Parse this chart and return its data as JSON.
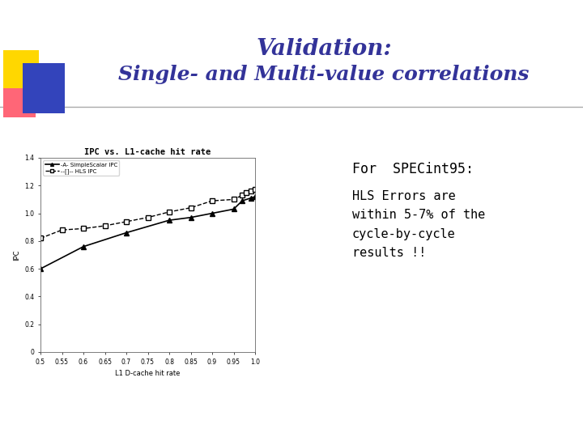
{
  "title_line1": "Validation:",
  "title_line2": "Single- and Multi-value correlations",
  "title_color": "#333399",
  "bg_color": "#ffffff",
  "chart_title": "IPC vs. L1-cache hit rate",
  "xlabel": "L1 D-cache hit rate",
  "ylabel": "IPC",
  "xlim": [
    0.5,
    1.0
  ],
  "ylim": [
    0.0,
    1.4
  ],
  "xticks": [
    0.5,
    0.55,
    0.6,
    0.65,
    0.7,
    0.75,
    0.8,
    0.85,
    0.9,
    0.95,
    1.0
  ],
  "yticks": [
    0,
    0.2,
    0.4,
    0.6,
    0.8,
    1.0,
    1.2,
    1.4
  ],
  "simplescalar_x": [
    0.5,
    0.6,
    0.7,
    0.8,
    0.85,
    0.9,
    0.95,
    0.97,
    0.99,
    1.0
  ],
  "simplescalar_y": [
    0.6,
    0.76,
    0.86,
    0.95,
    0.97,
    1.0,
    1.03,
    1.09,
    1.11,
    1.12
  ],
  "hls_x": [
    0.5,
    0.55,
    0.6,
    0.65,
    0.7,
    0.75,
    0.8,
    0.85,
    0.9,
    0.95,
    0.97,
    0.98,
    0.99,
    1.0
  ],
  "hls_y": [
    0.82,
    0.88,
    0.89,
    0.91,
    0.94,
    0.97,
    1.01,
    1.04,
    1.09,
    1.1,
    1.13,
    1.15,
    1.16,
    1.17
  ],
  "legend_simplescalar": "-A- SimpleScalar IPC",
  "legend_hls": "--[]-- HLS IPC",
  "right_text_line1": "For  SPECint95:",
  "right_text_line2": "HLS Errors are\nwithin 5-7% of the\ncycle-by-cycle\nresults !!",
  "sq_yellow": "#FFD700",
  "sq_red": "#FF6677",
  "sq_blue": "#3344BB",
  "hline_color": "#aaaaaa",
  "hline_y": 0.755
}
